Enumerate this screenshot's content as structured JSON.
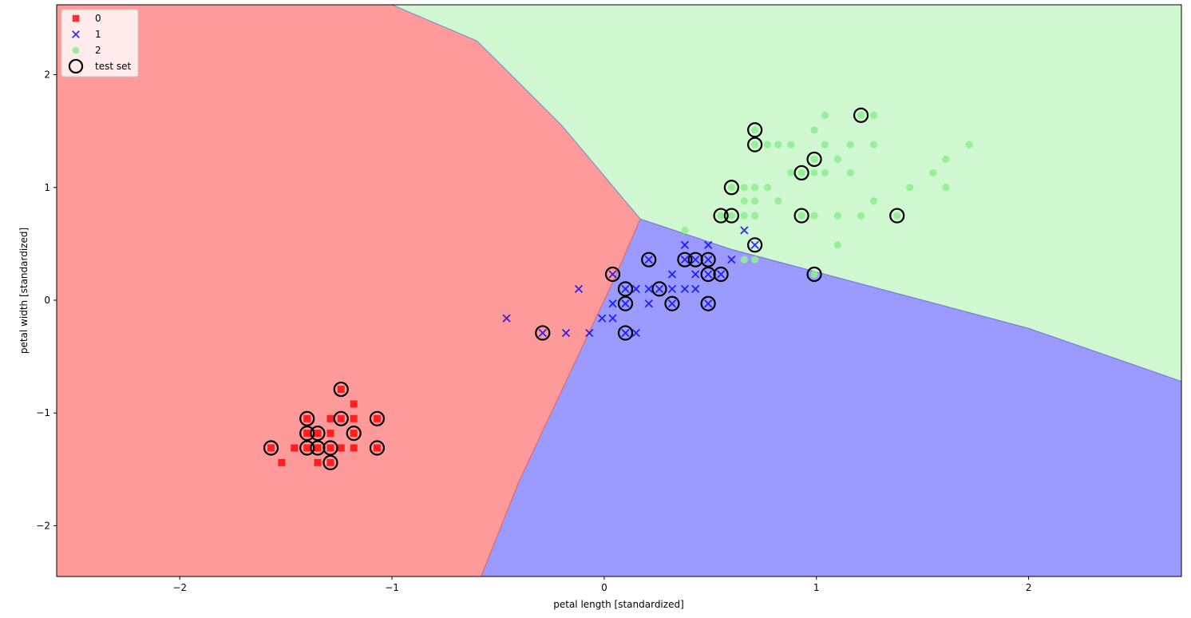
{
  "chart_data": {
    "type": "scatter",
    "title": "",
    "xlabel": "petal length [standardized]",
    "ylabel": "petal width [standardized]",
    "xlim": [
      -2.58,
      2.72
    ],
    "ylim": [
      -2.45,
      2.62
    ],
    "xticks": [
      -2,
      -1,
      0,
      1,
      2
    ],
    "yticks": [
      -2,
      -1,
      0,
      1,
      2
    ],
    "tick_labels": {
      "x": [
        "−2",
        "−1",
        "0",
        "1",
        "2"
      ],
      "y": [
        "−2",
        "−1",
        "0",
        "1",
        "2"
      ]
    },
    "grid": false,
    "legend": {
      "placement": "top-left",
      "entries": [
        {
          "label": "0",
          "marker": "square",
          "color": "#ff0000"
        },
        {
          "label": "1",
          "marker": "x",
          "color": "#0000ff"
        },
        {
          "label": "2",
          "marker": "circle",
          "color": "#90ee90"
        },
        {
          "label": "test set",
          "marker": "open-circle",
          "color": "#000000"
        }
      ]
    },
    "decision_regions": [
      {
        "class": "0",
        "color": "#ff9a9a"
      },
      {
        "class": "1",
        "color": "#9a9aff"
      },
      {
        "class": "2",
        "color": "#d0f8d0"
      }
    ],
    "decision_boundaries": {
      "red_green": [
        [
          -1.0,
          2.62
        ],
        [
          -0.6,
          2.3
        ],
        [
          -0.2,
          1.55
        ],
        [
          0.17,
          0.72
        ]
      ],
      "red_blue": [
        [
          0.17,
          0.72
        ],
        [
          0.05,
          0.2
        ],
        [
          -0.15,
          -0.6
        ],
        [
          -0.4,
          -1.6
        ],
        [
          -0.58,
          -2.45
        ]
      ],
      "green_blue": [
        [
          0.17,
          0.72
        ],
        [
          0.6,
          0.45
        ],
        [
          1.2,
          0.15
        ],
        [
          2.0,
          -0.25
        ],
        [
          2.72,
          -0.72
        ]
      ]
    },
    "series": [
      {
        "name": "0",
        "marker": "square",
        "color": "#ff0000",
        "points": [
          [
            -1.57,
            -1.31
          ],
          [
            -1.52,
            -1.44
          ],
          [
            -1.46,
            -1.31
          ],
          [
            -1.4,
            -1.31
          ],
          [
            -1.4,
            -1.05
          ],
          [
            -1.4,
            -1.18
          ],
          [
            -1.35,
            -1.31
          ],
          [
            -1.35,
            -1.44
          ],
          [
            -1.35,
            -1.18
          ],
          [
            -1.29,
            -1.31
          ],
          [
            -1.29,
            -1.44
          ],
          [
            -1.29,
            -1.05
          ],
          [
            -1.29,
            -1.18
          ],
          [
            -1.24,
            -1.31
          ],
          [
            -1.24,
            -1.05
          ],
          [
            -1.24,
            -0.79
          ],
          [
            -1.18,
            -1.05
          ],
          [
            -1.18,
            -1.18
          ],
          [
            -1.18,
            -1.31
          ],
          [
            -1.18,
            -0.92
          ],
          [
            -1.07,
            -1.05
          ],
          [
            -1.07,
            -1.31
          ]
        ]
      },
      {
        "name": "1",
        "marker": "x",
        "color": "#0000ff",
        "points": [
          [
            -0.46,
            -0.16
          ],
          [
            -0.29,
            -0.29
          ],
          [
            -0.18,
            -0.29
          ],
          [
            -0.12,
            0.1
          ],
          [
            -0.07,
            -0.29
          ],
          [
            -0.01,
            -0.16
          ],
          [
            0.04,
            -0.16
          ],
          [
            0.04,
            -0.03
          ],
          [
            0.04,
            0.23
          ],
          [
            0.1,
            0.1
          ],
          [
            0.1,
            -0.03
          ],
          [
            0.1,
            -0.29
          ],
          [
            0.15,
            0.1
          ],
          [
            0.15,
            -0.29
          ],
          [
            0.21,
            0.1
          ],
          [
            0.21,
            -0.03
          ],
          [
            0.21,
            0.36
          ],
          [
            0.26,
            0.1
          ],
          [
            0.32,
            0.1
          ],
          [
            0.32,
            -0.03
          ],
          [
            0.32,
            0.23
          ],
          [
            0.38,
            0.36
          ],
          [
            0.38,
            0.1
          ],
          [
            0.38,
            0.49
          ],
          [
            0.43,
            0.36
          ],
          [
            0.43,
            0.1
          ],
          [
            0.43,
            0.23
          ],
          [
            0.49,
            0.36
          ],
          [
            0.49,
            0.23
          ],
          [
            0.49,
            0.49
          ],
          [
            0.49,
            -0.03
          ],
          [
            0.55,
            0.23
          ],
          [
            0.6,
            0.36
          ],
          [
            0.66,
            0.62
          ],
          [
            0.71,
            0.49
          ]
        ]
      },
      {
        "name": "2",
        "marker": "circle",
        "color": "#90ee90",
        "points": [
          [
            0.38,
            0.62
          ],
          [
            0.55,
            0.75
          ],
          [
            0.6,
            0.75
          ],
          [
            0.6,
            1.0
          ],
          [
            0.66,
            0.36
          ],
          [
            0.66,
            0.88
          ],
          [
            0.66,
            1.0
          ],
          [
            0.66,
            0.75
          ],
          [
            0.71,
            0.36
          ],
          [
            0.71,
            0.75
          ],
          [
            0.71,
            0.88
          ],
          [
            0.71,
            1.0
          ],
          [
            0.71,
            1.38
          ],
          [
            0.71,
            1.51
          ],
          [
            0.77,
            1.0
          ],
          [
            0.77,
            1.38
          ],
          [
            0.82,
            0.88
          ],
          [
            0.82,
            1.38
          ],
          [
            0.88,
            1.38
          ],
          [
            0.88,
            1.13
          ],
          [
            0.93,
            0.75
          ],
          [
            0.93,
            1.13
          ],
          [
            0.99,
            0.75
          ],
          [
            0.99,
            1.13
          ],
          [
            0.99,
            1.25
          ],
          [
            0.99,
            1.51
          ],
          [
            0.99,
            0.23
          ],
          [
            1.04,
            1.13
          ],
          [
            1.04,
            1.38
          ],
          [
            1.04,
            1.64
          ],
          [
            1.1,
            0.49
          ],
          [
            1.1,
            0.75
          ],
          [
            1.1,
            1.25
          ],
          [
            1.16,
            1.13
          ],
          [
            1.16,
            1.38
          ],
          [
            1.21,
            0.75
          ],
          [
            1.21,
            1.64
          ],
          [
            1.27,
            0.88
          ],
          [
            1.27,
            1.38
          ],
          [
            1.27,
            1.64
          ],
          [
            1.38,
            0.75
          ],
          [
            1.44,
            1.0
          ],
          [
            1.55,
            1.13
          ],
          [
            1.61,
            1.0
          ],
          [
            1.61,
            1.25
          ],
          [
            1.72,
            1.38
          ]
        ]
      },
      {
        "name": "test set",
        "marker": "open-circle",
        "color": "#000000",
        "points": [
          [
            -1.57,
            -1.31
          ],
          [
            -1.4,
            -1.05
          ],
          [
            -1.4,
            -1.18
          ],
          [
            -1.4,
            -1.31
          ],
          [
            -1.35,
            -1.18
          ],
          [
            -1.35,
            -1.31
          ],
          [
            -1.29,
            -1.31
          ],
          [
            -1.29,
            -1.44
          ],
          [
            -1.24,
            -0.79
          ],
          [
            -1.24,
            -1.05
          ],
          [
            -1.18,
            -1.18
          ],
          [
            -1.07,
            -1.05
          ],
          [
            -1.07,
            -1.31
          ],
          [
            -0.29,
            -0.29
          ],
          [
            0.04,
            0.23
          ],
          [
            0.1,
            0.1
          ],
          [
            0.1,
            -0.03
          ],
          [
            0.1,
            -0.29
          ],
          [
            0.21,
            0.36
          ],
          [
            0.26,
            0.1
          ],
          [
            0.32,
            -0.03
          ],
          [
            0.38,
            0.36
          ],
          [
            0.43,
            0.36
          ],
          [
            0.49,
            0.36
          ],
          [
            0.49,
            0.23
          ],
          [
            0.49,
            -0.03
          ],
          [
            0.55,
            0.23
          ],
          [
            0.55,
            0.75
          ],
          [
            0.6,
            0.75
          ],
          [
            0.6,
            1.0
          ],
          [
            0.71,
            0.49
          ],
          [
            0.71,
            1.38
          ],
          [
            0.71,
            1.51
          ],
          [
            0.93,
            0.75
          ],
          [
            0.93,
            1.13
          ],
          [
            0.99,
            1.25
          ],
          [
            0.99,
            0.23
          ],
          [
            1.21,
            1.64
          ],
          [
            1.38,
            0.75
          ]
        ]
      }
    ]
  }
}
